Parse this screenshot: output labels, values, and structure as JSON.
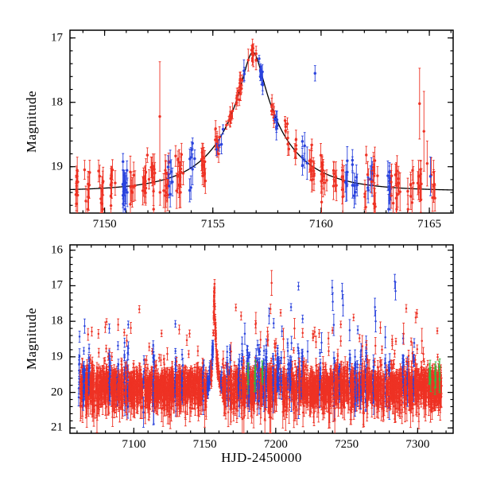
{
  "figure": {
    "background": "#ffffff"
  },
  "colors": {
    "red": "#ee3224",
    "blue": "#2a43dd",
    "green": "#3cb43c",
    "model": "#000000",
    "axis": "#000000"
  },
  "chart_data": [
    {
      "type": "scatter",
      "panel": "top",
      "title": "",
      "ylabel": "Magnitude",
      "xlabel": "",
      "xlim": [
        7148.4,
        7166.1
      ],
      "ylim": [
        19.72,
        16.88
      ],
      "xticks": [
        7150,
        7155,
        7160,
        7165
      ],
      "yticks": [
        17,
        18,
        19
      ],
      "x_minor": 1,
      "y_minor": 0.2,
      "grid": false,
      "seed": 42,
      "show_model_curve": true,
      "model": {
        "t0": 7156.85,
        "tE": 3.1,
        "u0": 0.138,
        "baseline": 19.38,
        "peak_mag": 17.23
      },
      "series": [
        {
          "name": "red-points",
          "color": "red"
        },
        {
          "name": "blue-points",
          "color": "blue"
        },
        {
          "name": "model-curve",
          "color": "model"
        }
      ],
      "sampling": {
        "x_start": 7148.15,
        "x_end": 7165.35,
        "night_step": 0.52,
        "x_spread": 0.07,
        "n_min": 5,
        "n_max": 15,
        "blue_fraction": 0.22,
        "secondary_prob": 0.3,
        "base_sigma": 0.17,
        "peak_sigma": 0.07,
        "y_min": 17.1,
        "y_max": 19.66,
        "marker_radius": 1.7
      },
      "outliers": [
        {
          "x": 7152.55,
          "y": 18.22,
          "err": 0.85,
          "color": "red"
        },
        {
          "x": 7159.72,
          "y": 17.55,
          "err": 0.12,
          "color": "blue"
        },
        {
          "x": 7164.55,
          "y": 18.02,
          "err": 0.55,
          "color": "red"
        },
        {
          "x": 7164.75,
          "y": 18.45,
          "err": 0.62,
          "color": "red"
        },
        {
          "x": 7164.9,
          "y": 18.95,
          "err": 0.35,
          "color": "red"
        },
        {
          "x": 7165.05,
          "y": 19.15,
          "err": 0.3,
          "color": "blue"
        }
      ]
    },
    {
      "type": "scatter",
      "panel": "bottom",
      "title": "",
      "ylabel": "Magnitude",
      "xlabel": "HJD-2450000",
      "xlim": [
        7055,
        7325
      ],
      "ylim": [
        21.15,
        15.85
      ],
      "xticks": [
        7100,
        7150,
        7200,
        7250,
        7300
      ],
      "yticks": [
        16,
        17,
        18,
        19,
        20,
        21
      ],
      "x_minor": 10,
      "y_minor": 0.2,
      "grid": false,
      "seed": 7,
      "show_model_curve": false,
      "model": {
        "t0": 7156.85,
        "tE": 3.1,
        "u0": 0.072,
        "baseline": 19.85,
        "peak_mag": 17.0
      },
      "series": [
        {
          "name": "red-points",
          "color": "red"
        },
        {
          "name": "blue-points",
          "color": "blue"
        },
        {
          "name": "green-points",
          "color": "green"
        }
      ],
      "sampling": {
        "x_start": 7061.5,
        "x_end": 7316.5,
        "night_step": 0.85,
        "x_spread": 0.22,
        "n_min": 7,
        "n_max": 22,
        "blue_fraction": 0.17,
        "blue_offset": -0.3,
        "baseline": 19.85,
        "base_sigma": 0.27,
        "blue_sigma": 0.38,
        "bright_outlier_prob": 0.025,
        "y_min": 16.6,
        "y_max": 20.75,
        "marker_radius": 1.25
      },
      "green": {
        "mean": 19.5,
        "sigma": 0.18,
        "nights": [
          {
            "x": 7180.5,
            "n": 5
          },
          {
            "x": 7185.5,
            "n": 4
          },
          {
            "x": 7190.5,
            "n": 4
          },
          {
            "x": 7308.5,
            "n": 7
          },
          {
            "x": 7312.5,
            "n": 7
          },
          {
            "x": 7315.5,
            "n": 5
          }
        ]
      },
      "outliers": [
        {
          "x": 7168.5,
          "y": 18.85,
          "err": 0.25,
          "color": "red"
        },
        {
          "x": 7178.2,
          "y": 18.35,
          "err": 0.3,
          "color": "blue"
        },
        {
          "x": 7186.0,
          "y": 18.05,
          "err": 0.3,
          "color": "red"
        },
        {
          "x": 7195.3,
          "y": 17.85,
          "err": 0.22,
          "color": "blue"
        },
        {
          "x": 7197.1,
          "y": 16.92,
          "err": 0.35,
          "color": "red"
        },
        {
          "x": 7205.4,
          "y": 18.5,
          "err": 0.3,
          "color": "red"
        },
        {
          "x": 7213.2,
          "y": 18.2,
          "err": 0.28,
          "color": "red"
        },
        {
          "x": 7222.5,
          "y": 18.85,
          "err": 0.3,
          "color": "blue"
        },
        {
          "x": 7232.3,
          "y": 18.6,
          "err": 0.28,
          "color": "blue"
        },
        {
          "x": 7239.8,
          "y": 17.05,
          "err": 0.2,
          "color": "blue"
        },
        {
          "x": 7240.2,
          "y": 17.45,
          "err": 0.25,
          "color": "blue"
        },
        {
          "x": 7240.9,
          "y": 18.1,
          "err": 0.3,
          "color": "blue"
        },
        {
          "x": 7246.8,
          "y": 17.15,
          "err": 0.22,
          "color": "blue"
        },
        {
          "x": 7247.4,
          "y": 17.55,
          "err": 0.3,
          "color": "blue"
        },
        {
          "x": 7252.1,
          "y": 18.25,
          "err": 0.3,
          "color": "blue"
        },
        {
          "x": 7261.0,
          "y": 18.7,
          "err": 0.3,
          "color": "red"
        },
        {
          "x": 7269.9,
          "y": 17.6,
          "err": 0.25,
          "color": "blue"
        },
        {
          "x": 7270.4,
          "y": 18.0,
          "err": 0.3,
          "color": "blue"
        },
        {
          "x": 7277.2,
          "y": 18.45,
          "err": 0.3,
          "color": "blue"
        },
        {
          "x": 7283.9,
          "y": 16.88,
          "err": 0.2,
          "color": "blue"
        },
        {
          "x": 7284.4,
          "y": 17.15,
          "err": 0.25,
          "color": "blue"
        },
        {
          "x": 7290.1,
          "y": 18.35,
          "err": 0.3,
          "color": "red"
        },
        {
          "x": 7296.3,
          "y": 18.9,
          "err": 0.3,
          "color": "red"
        },
        {
          "x": 7303.0,
          "y": 18.55,
          "err": 0.35,
          "color": "red"
        }
      ]
    }
  ]
}
